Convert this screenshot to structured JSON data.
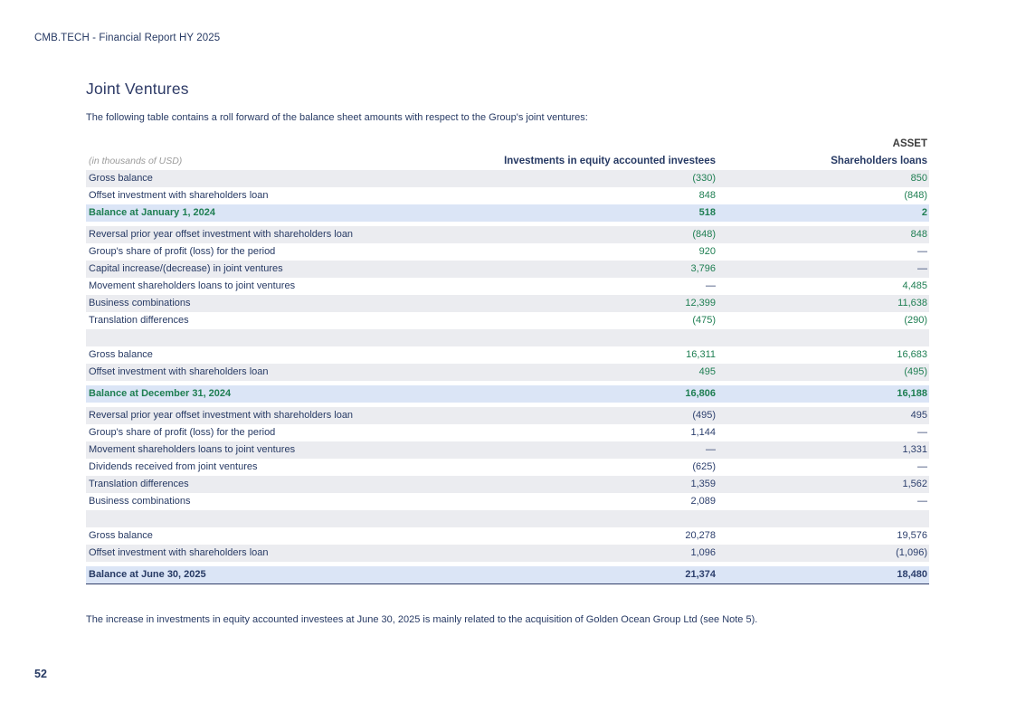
{
  "page": {
    "report_header": "CMB.TECH - Financial Report HY 2025",
    "page_number": "52"
  },
  "section": {
    "title": "Joint Ventures",
    "intro": "The following table contains a roll forward of the balance sheet amounts with respect to the Group's joint ventures:",
    "footnote": "The increase in investments in equity accounted investees at June 30, 2025 is mainly related to the acquisition of Golden Ocean Group Ltd (see Note 5)."
  },
  "table": {
    "group_header": "ASSET",
    "unit_label": "(in thousands of USD)",
    "columns": [
      "Investments in equity accounted investees",
      "Shareholders loans"
    ],
    "rows": [
      {
        "label": "Gross balance",
        "v1": "(330)",
        "v2": "850",
        "bg": "grey",
        "color": "green"
      },
      {
        "label": "Offset investment with shareholders loan",
        "v1": "848",
        "v2": "(848)",
        "bg": "white",
        "color": "green"
      },
      {
        "label": "Balance at January 1, 2024",
        "v1": "518",
        "v2": "2",
        "bg": "blue",
        "color": "green",
        "label_color": "green",
        "bold": true
      },
      {
        "label": "Reversal prior year offset investment with shareholders loan",
        "v1": "(848)",
        "v2": "848",
        "bg": "grey",
        "color": "green",
        "gap_before": true
      },
      {
        "label": "Group's share of profit (loss) for the period",
        "v1": "920",
        "v2": "—",
        "bg": "white",
        "color": "green"
      },
      {
        "label": "Capital increase/(decrease) in joint ventures",
        "v1": "3,796",
        "v2": "—",
        "bg": "grey",
        "color": "green"
      },
      {
        "label": "Movement shareholders loans to joint ventures",
        "v1": "—",
        "v2": "4,485",
        "bg": "white",
        "color": "green"
      },
      {
        "label": "Business combinations",
        "v1": "12,399",
        "v2": "11,638",
        "bg": "grey",
        "color": "green"
      },
      {
        "label": "Translation differences",
        "v1": "(475)",
        "v2": "(290)",
        "bg": "white",
        "color": "green"
      },
      {
        "type": "spacer",
        "bg": "grey"
      },
      {
        "label": "Gross balance",
        "v1": "16,311",
        "v2": "16,683",
        "bg": "white",
        "color": "green"
      },
      {
        "label": "Offset investment with shareholders loan",
        "v1": "495",
        "v2": "(495)",
        "bg": "grey",
        "color": "green"
      },
      {
        "label": "Balance at December 31, 2024",
        "v1": "16,806",
        "v2": "16,188",
        "bg": "blue",
        "color": "green",
        "label_color": "green",
        "bold": true,
        "gap_before": true
      },
      {
        "label": "Reversal prior year offset investment with shareholders loan",
        "v1": "(495)",
        "v2": "495",
        "bg": "grey",
        "color": "navy",
        "gap_before": true
      },
      {
        "label": "Group's share of profit (loss) for the period",
        "v1": "1,144",
        "v2": "—",
        "bg": "white",
        "color": "navy"
      },
      {
        "label": "Movement shareholders loans to joint ventures",
        "v1": "—",
        "v2": "1,331",
        "bg": "grey",
        "color": "navy"
      },
      {
        "label": "Dividends received from joint ventures",
        "v1": "(625)",
        "v2": "—",
        "bg": "white",
        "color": "navy"
      },
      {
        "label": "Translation differences",
        "v1": "1,359",
        "v2": "1,562",
        "bg": "grey",
        "color": "navy"
      },
      {
        "label": "Business combinations",
        "v1": "2,089",
        "v2": "—",
        "bg": "white",
        "color": "navy"
      },
      {
        "type": "spacer",
        "bg": "grey"
      },
      {
        "label": "Gross balance",
        "v1": "20,278",
        "v2": "19,576",
        "bg": "white",
        "color": "navy"
      },
      {
        "label": "Offset investment with shareholders loan",
        "v1": "1,096",
        "v2": "(1,096)",
        "bg": "grey",
        "color": "navy"
      },
      {
        "label": "Balance at June 30, 2025",
        "v1": "21,374",
        "v2": "18,480",
        "bg": "blue",
        "color": "navy",
        "label_color": "navy",
        "bold": true,
        "gap_before": true,
        "underline": true
      }
    ]
  },
  "colors": {
    "navy_text": "#273a64",
    "green_value": "#1e7e52",
    "row_grey": "#ebecf0",
    "row_blue": "#dbe5f6",
    "asset_header": "#3d3d3d"
  }
}
